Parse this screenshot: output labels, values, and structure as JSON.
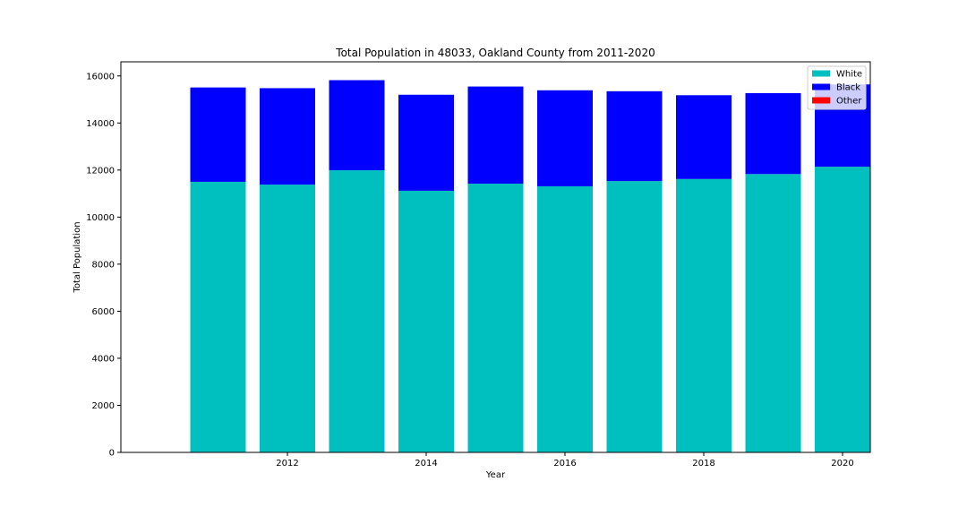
{
  "chart_data": {
    "type": "bar",
    "stacked": true,
    "title": "Total Population in 48033, Oakland County from 2011-2020",
    "xlabel": "Year",
    "ylabel": "Total Population",
    "x": [
      2011,
      2012,
      2013,
      2014,
      2015,
      2016,
      2017,
      2018,
      2019,
      2020
    ],
    "xticks": [
      2012,
      2014,
      2016,
      2018,
      2020
    ],
    "xlim": [
      2009.6,
      2020.4
    ],
    "yticks": [
      0,
      2000,
      4000,
      6000,
      8000,
      10000,
      12000,
      14000,
      16000
    ],
    "ylim": [
      0,
      16600
    ],
    "bar_width": 0.8,
    "grid": false,
    "legend_position": "top-right",
    "series": [
      {
        "name": "White",
        "color": "#00bfbf",
        "values": [
          11500,
          11380,
          11990,
          11120,
          11420,
          11310,
          11530,
          11620,
          11830,
          12140
        ]
      },
      {
        "name": "Black",
        "color": "#0000ff",
        "values": [
          4010,
          4100,
          3830,
          4080,
          4130,
          4080,
          3820,
          3560,
          3440,
          3500
        ]
      },
      {
        "name": "Other",
        "color": "#ff0000",
        "values": [
          0,
          0,
          0,
          0,
          0,
          0,
          0,
          0,
          0,
          0
        ]
      }
    ]
  }
}
